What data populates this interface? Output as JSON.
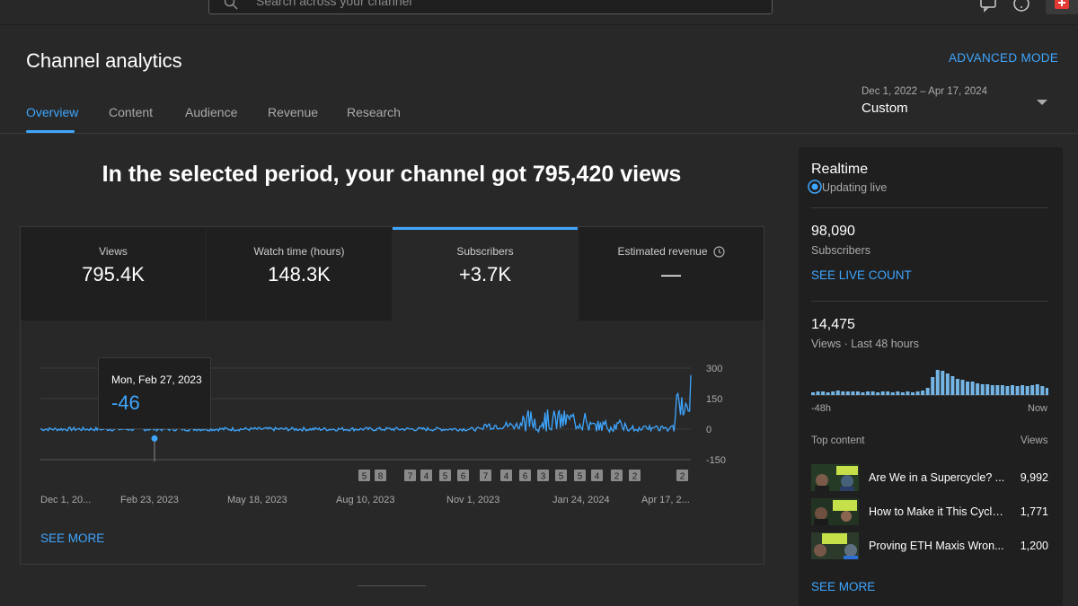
{
  "search": {
    "placeholder": "Search across your channel"
  },
  "header": {
    "title": "Channel analytics",
    "advanced_mode": "ADVANCED MODE"
  },
  "tabs": [
    {
      "label": "Overview",
      "active": true
    },
    {
      "label": "Content"
    },
    {
      "label": "Audience"
    },
    {
      "label": "Revenue"
    },
    {
      "label": "Research"
    }
  ],
  "date_range": {
    "dates": "Dec 1, 2022 – Apr 17, 2024",
    "label": "Custom"
  },
  "headline": "In the selected period, your channel got 795,420 views",
  "metrics": [
    {
      "label": "Views",
      "value": "795.4K"
    },
    {
      "label": "Watch time (hours)",
      "value": "148.3K"
    },
    {
      "label": "Subscribers",
      "value": "+3.7K",
      "selected": true
    },
    {
      "label": "Estimated revenue",
      "value": "—"
    }
  ],
  "tooltip": {
    "date": "Mon, Feb 27, 2023",
    "value": "-46"
  },
  "see_more": "SEE MORE",
  "chart_data": {
    "type": "line",
    "series_description": "daily subscriber change",
    "y_ticks": [
      "300",
      "150",
      "0",
      "-150"
    ],
    "ylim": [
      -150,
      300
    ],
    "x_ticks": [
      "Dec 1, 20...",
      "Feb 23, 2023",
      "May 18, 2023",
      "Aug 10, 2023",
      "Nov 1, 2023",
      "Jan 24, 2024",
      "Apr 17, 2..."
    ],
    "markers": [
      "5",
      "8",
      "7",
      "4",
      "5",
      "6",
      "7",
      "4",
      "6",
      "3",
      "5",
      "5",
      "4",
      "2",
      "2",
      "2"
    ],
    "highlight": {
      "x": "Feb 27, 2023",
      "y": -46
    },
    "color": "#3ea6ff"
  },
  "realtime": {
    "title": "Realtime",
    "live": "Updating live",
    "subscribers": "98,090",
    "subscribers_label": "Subscribers",
    "live_count": "SEE LIVE COUNT",
    "views": "14,475",
    "views_label": "Views · Last 48 hours",
    "axis_start": "-48h",
    "axis_end": "Now",
    "top_content": "Top content",
    "views_header": "Views",
    "items": [
      {
        "title": "Are We in a Supercycle? ...",
        "views": "9,992"
      },
      {
        "title": "How to Make it This Cycle...",
        "views": "1,771"
      },
      {
        "title": "Proving ETH Maxis Wron...",
        "views": "1,200"
      }
    ],
    "see_more": "SEE MORE"
  }
}
